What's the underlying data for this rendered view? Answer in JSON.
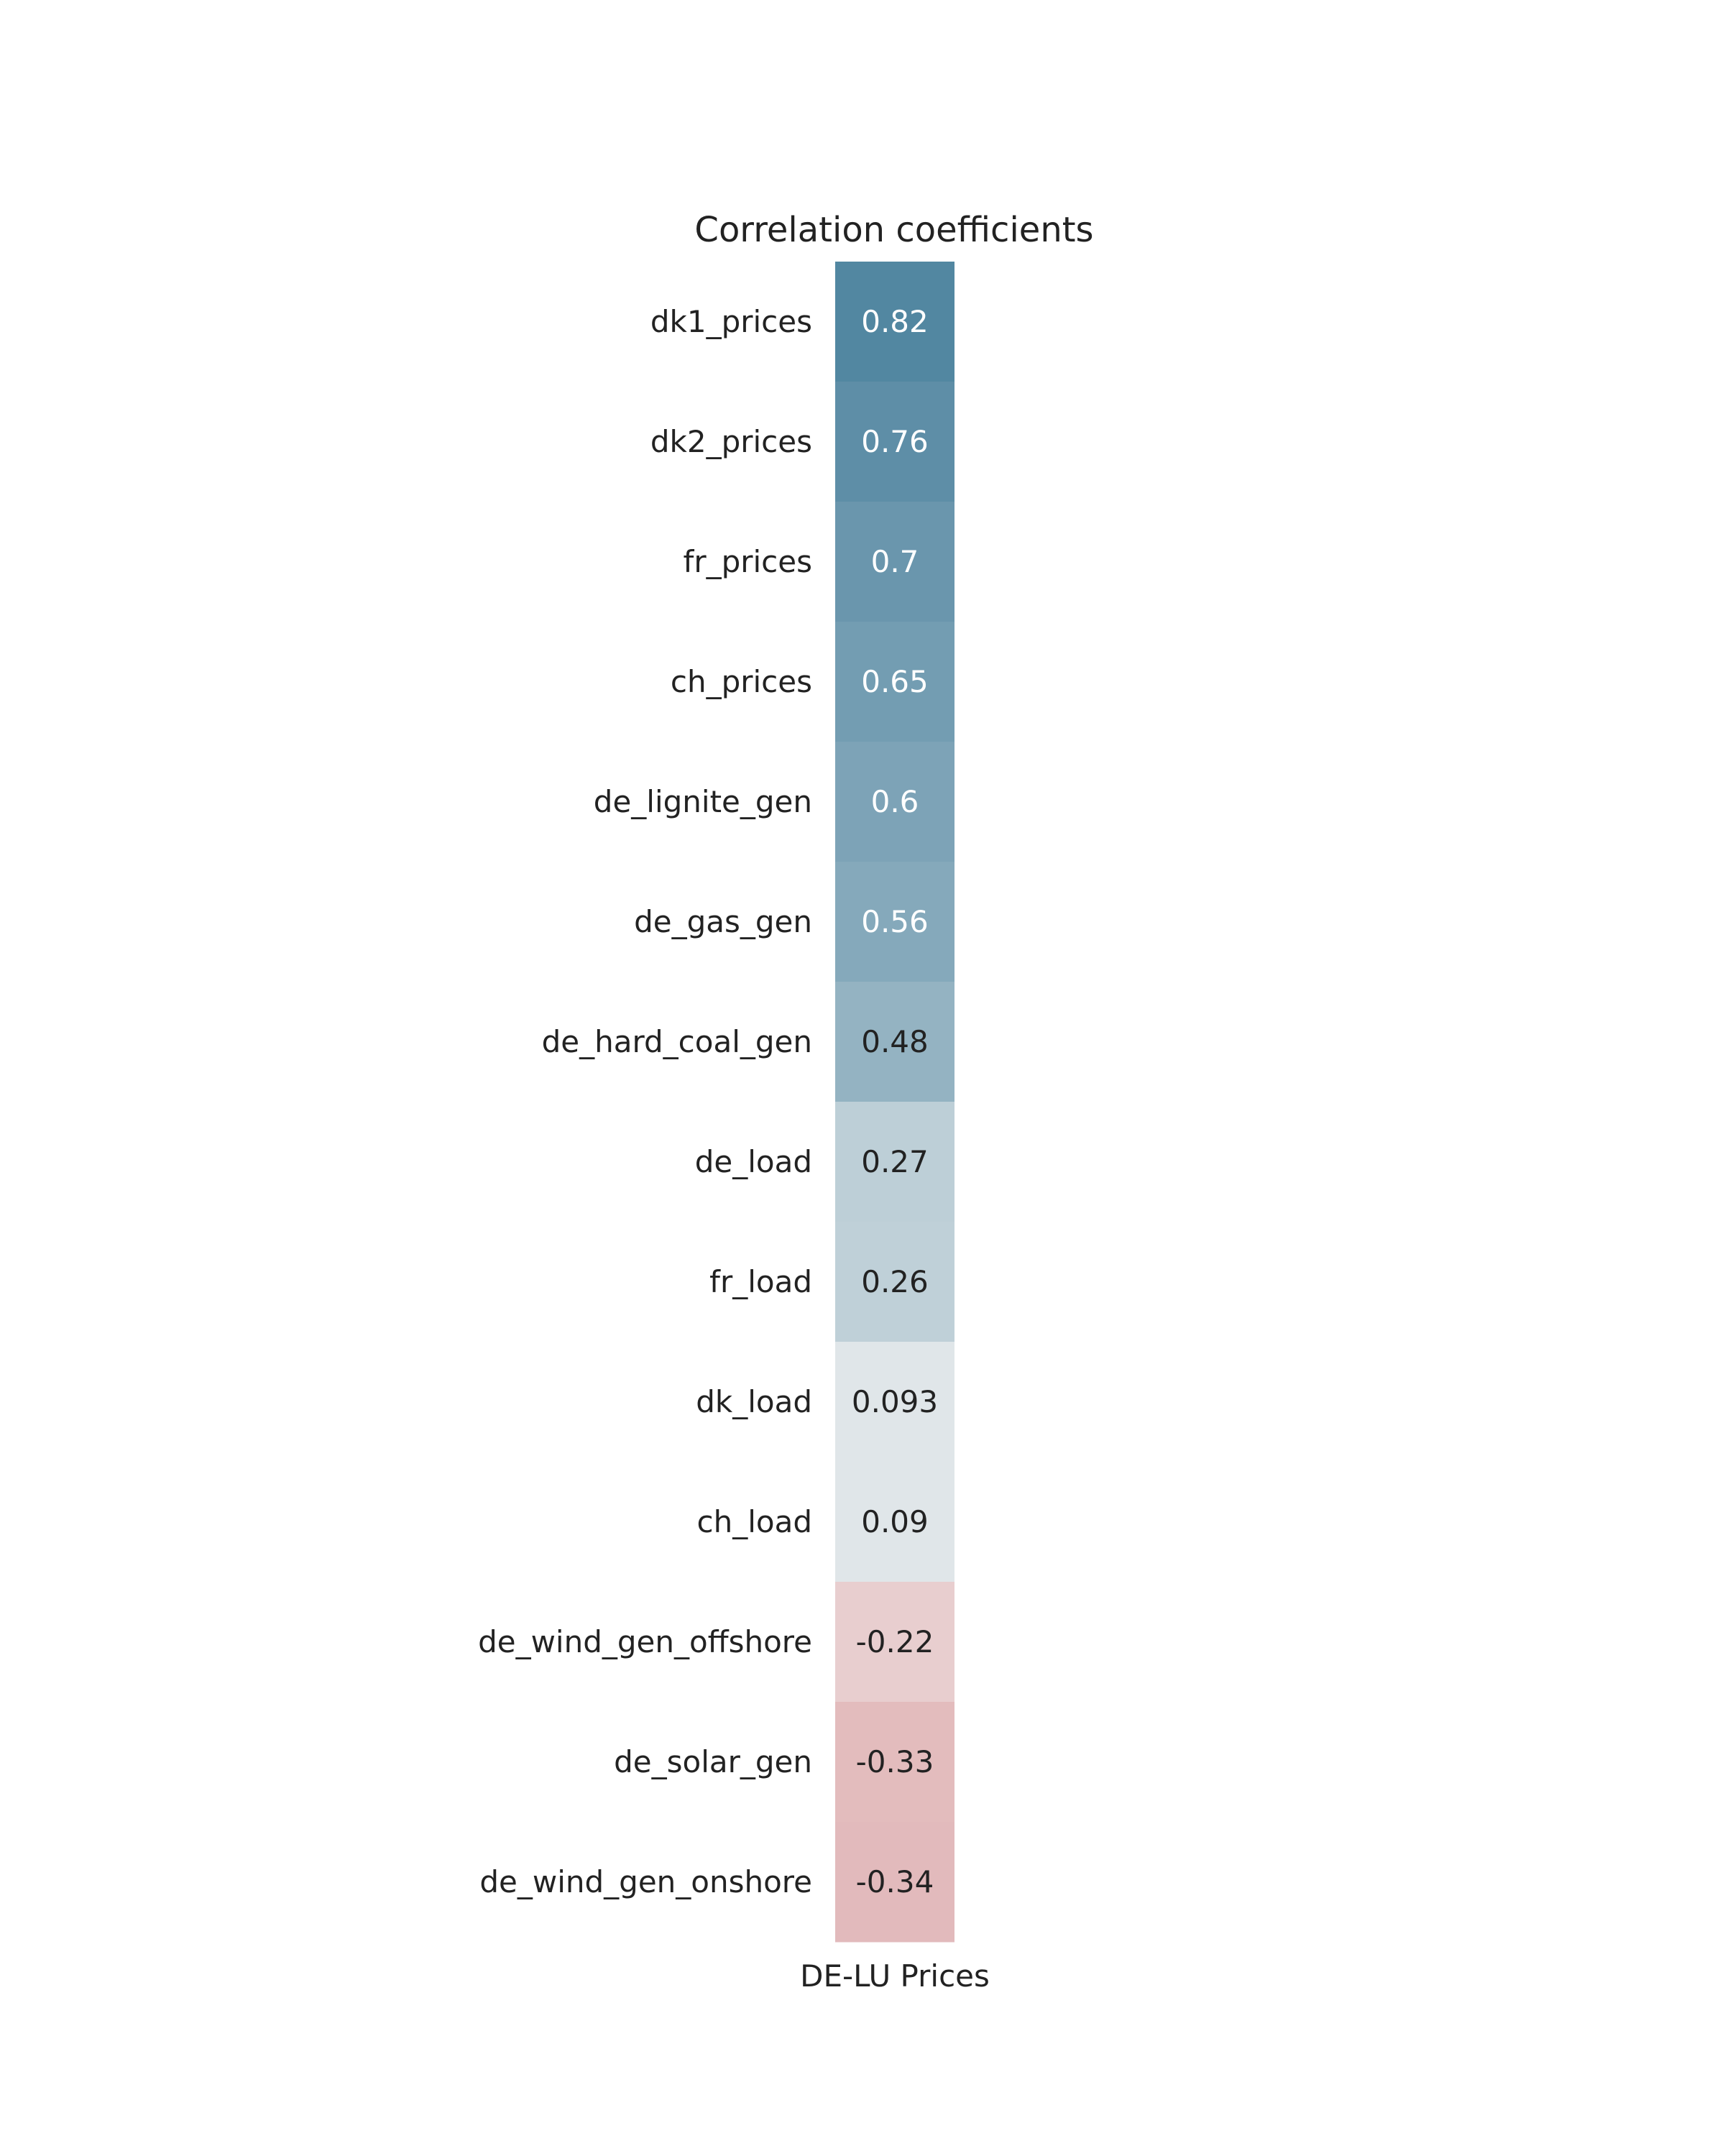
{
  "chart_data": {
    "type": "heatmap",
    "title": "Correlation coefficients",
    "columns": [
      "DE-LU Prices"
    ],
    "rows": [
      "dk1_prices",
      "dk2_prices",
      "fr_prices",
      "ch_prices",
      "de_lignite_gen",
      "de_gas_gen",
      "de_hard_coal_gen",
      "de_load",
      "fr_load",
      "dk_load",
      "ch_load",
      "de_wind_gen_offshore",
      "de_solar_gen",
      "de_wind_gen_onshore"
    ],
    "values": [
      0.82,
      0.76,
      0.7,
      0.65,
      0.6,
      0.56,
      0.48,
      0.27,
      0.26,
      0.093,
      0.09,
      -0.22,
      -0.33,
      -0.34
    ],
    "value_labels": [
      "0.82",
      "0.76",
      "0.7",
      "0.65",
      "0.6",
      "0.56",
      "0.48",
      "0.27",
      "0.26",
      "0.093",
      "0.09",
      "-0.22",
      "-0.33",
      "-0.34"
    ],
    "colorscale": {
      "type": "diverging",
      "vmin": -1,
      "vmax": 1,
      "negative_color": "#c44e52",
      "center_color": "#f2f2f2",
      "positive_color": "#2f6f8f"
    },
    "grid": false,
    "legend": "none"
  },
  "colors": {
    "text_dark": "#222222",
    "text_light": "#ffffff",
    "background": "#ffffff"
  }
}
